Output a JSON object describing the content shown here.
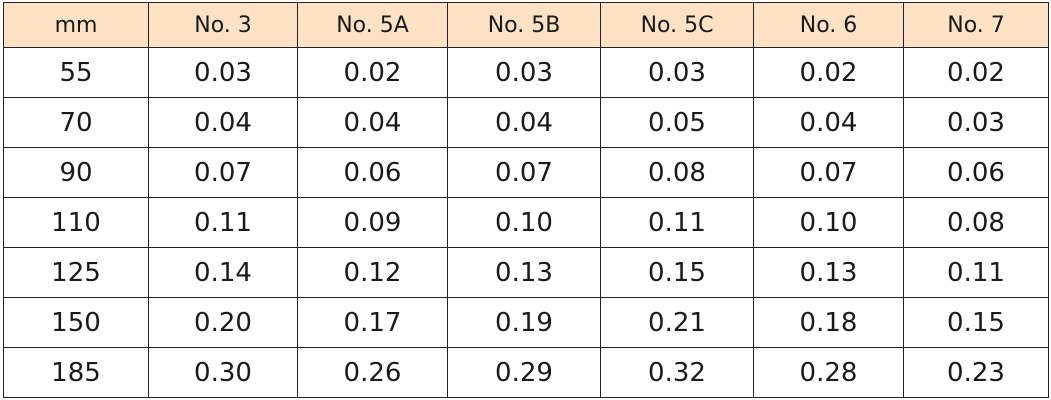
{
  "table": {
    "header": [
      "mm",
      "No. 3",
      "No. 5A",
      "No. 5B",
      "No. 5C",
      "No. 6",
      "No. 7"
    ],
    "rows": [
      [
        "55",
        "0.03",
        "0.02",
        "0.03",
        "0.03",
        "0.02",
        "0.02"
      ],
      [
        "70",
        "0.04",
        "0.04",
        "0.04",
        "0.05",
        "0.04",
        "0.03"
      ],
      [
        "90",
        "0.07",
        "0.06",
        "0.07",
        "0.08",
        "0.07",
        "0.06"
      ],
      [
        "110",
        "0.11",
        "0.09",
        "0.10",
        "0.11",
        "0.10",
        "0.08"
      ],
      [
        "125",
        "0.14",
        "0.12",
        "0.13",
        "0.15",
        "0.13",
        "0.11"
      ],
      [
        "150",
        "0.20",
        "0.17",
        "0.19",
        "0.21",
        "0.18",
        "0.15"
      ],
      [
        "185",
        "0.30",
        "0.26",
        "0.29",
        "0.32",
        "0.28",
        "0.23"
      ]
    ]
  }
}
